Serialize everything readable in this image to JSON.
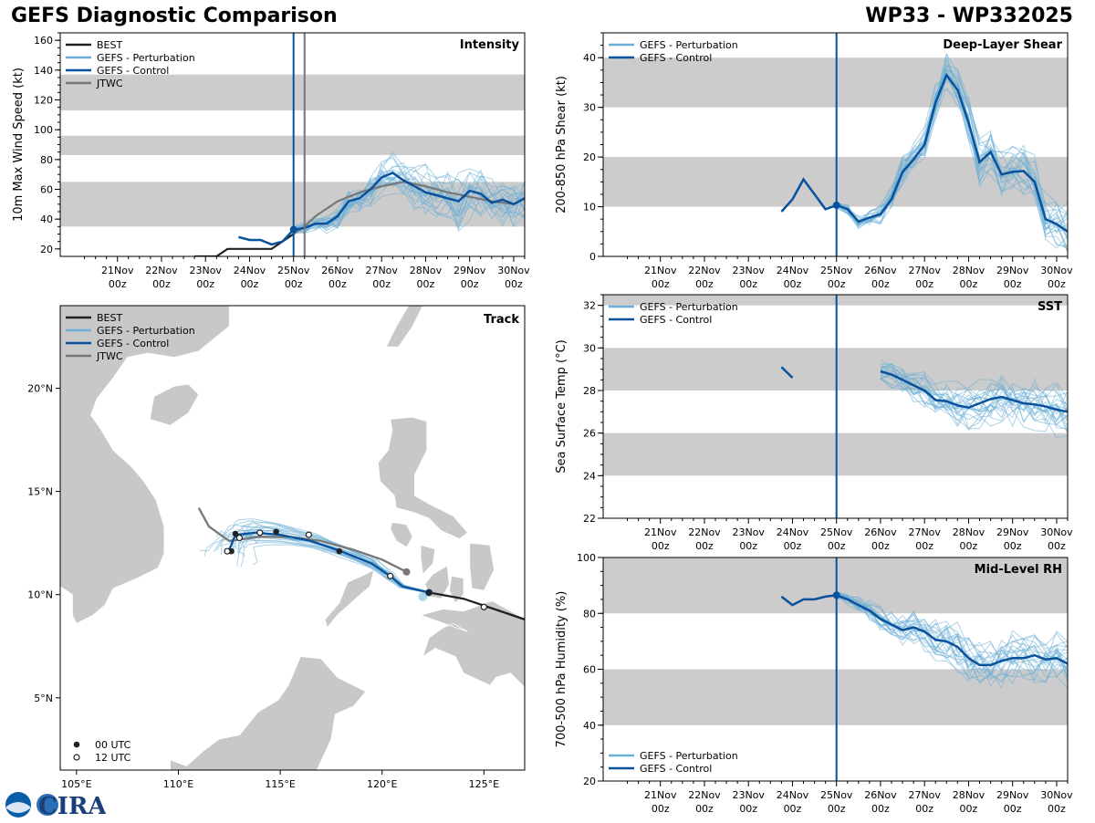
{
  "header": {
    "title_left": "GEFS Diagnostic Comparison",
    "title_right": "WP33 - WP332025"
  },
  "logo": {
    "label": "CIRA"
  },
  "colors": {
    "best": "#222222",
    "perturbation": "#6baed6",
    "control": "#08519c",
    "jtwc": "#777777",
    "band": "#cccccc",
    "land": "#c8c8c8",
    "marker": "#08519c"
  },
  "time_axis": {
    "labels_top": [
      "21Nov",
      "22Nov",
      "23Nov",
      "24Nov",
      "25Nov",
      "26Nov",
      "27Nov",
      "28Nov",
      "29Nov",
      "30Nov"
    ],
    "labels_bottom": [
      "00z",
      "00z",
      "00z",
      "00z",
      "00z",
      "00z",
      "00z",
      "00z",
      "00z",
      "00z"
    ],
    "range_days": [
      19.7,
      30.25
    ],
    "init_day": 25.0,
    "jtwc_day": 25.25
  },
  "chart_data": [
    {
      "id": "intensity",
      "type": "line",
      "title": "Intensity",
      "ylabel": "10m Max Wind Speed (kt)",
      "ylim": [
        15,
        165
      ],
      "yticks": [
        20,
        40,
        60,
        80,
        100,
        120,
        140,
        160
      ],
      "bands": [
        [
          35,
          65
        ],
        [
          83,
          96
        ],
        [
          113,
          137
        ]
      ],
      "legend": [
        "BEST",
        "GEFS - Perturbation",
        "GEFS - Control",
        "JTWC"
      ],
      "series": [
        {
          "name": "BEST",
          "x": [
            22.75,
            23.25,
            23.5,
            24.0,
            24.5,
            25.0
          ],
          "y": [
            15,
            15,
            20,
            20,
            20,
            30
          ]
        },
        {
          "name": "JTWC",
          "x": [
            25.0,
            25.25,
            25.5,
            26.0,
            26.5,
            27.0,
            27.5,
            28.0,
            28.5,
            29.0,
            29.5,
            30.0
          ],
          "y": [
            30,
            35,
            42,
            52,
            58,
            62,
            65,
            62,
            58,
            55,
            52,
            50
          ]
        },
        {
          "name": "GEFS - Control",
          "x": [
            23.75,
            24.0,
            24.25,
            24.5,
            24.75,
            25.0,
            25.25,
            25.5,
            25.75,
            26.0,
            26.25,
            26.5,
            26.75,
            27.0,
            27.25,
            27.5,
            27.75,
            28.0,
            28.25,
            28.5,
            28.75,
            29.0,
            29.25,
            29.5,
            29.75,
            30.0,
            30.25
          ],
          "y": [
            28,
            26,
            26,
            23,
            25,
            33,
            34,
            37,
            37,
            42,
            52,
            54,
            60,
            68,
            71,
            66,
            62,
            58,
            56,
            54,
            52,
            59,
            57,
            51,
            53,
            50,
            54
          ]
        }
      ],
      "marker": {
        "x": 25.0,
        "y": 33
      }
    },
    {
      "id": "shear",
      "type": "line",
      "title": "Deep-Layer Shear",
      "ylabel": "200-850 hPa Shear (kt)",
      "ylim": [
        0,
        45
      ],
      "yticks": [
        0,
        10,
        20,
        30,
        40
      ],
      "bands": [
        [
          10,
          20
        ],
        [
          30,
          40
        ]
      ],
      "legend": [
        "GEFS - Perturbation",
        "GEFS - Control"
      ],
      "series": [
        {
          "name": "GEFS - Control",
          "x": [
            23.75,
            24.0,
            24.25,
            24.5,
            24.75,
            25.0,
            25.25,
            25.5,
            25.75,
            26.0,
            26.25,
            26.5,
            26.75,
            27.0,
            27.25,
            27.5,
            27.75,
            28.0,
            28.25,
            28.5,
            28.75,
            29.0,
            29.25,
            29.5,
            29.75,
            30.0,
            30.25
          ],
          "y": [
            9,
            11.5,
            15.5,
            12.5,
            9.5,
            10.3,
            9.5,
            7.0,
            7.8,
            8.5,
            11.5,
            17,
            19.5,
            22.5,
            31,
            36.5,
            33.5,
            27,
            19,
            21,
            16.5,
            17,
            17.2,
            15,
            7.5,
            6.5,
            5
          ]
        }
      ],
      "marker": {
        "x": 25.0,
        "y": 10.3
      }
    },
    {
      "id": "sst",
      "type": "line",
      "title": "SST",
      "ylabel": "Sea Surface Temp (°C)",
      "ylim": [
        22,
        32.5
      ],
      "yticks": [
        22,
        24,
        26,
        28,
        30,
        32
      ],
      "bands": [
        [
          24,
          26
        ],
        [
          28,
          30
        ],
        [
          32,
          32.5
        ]
      ],
      "legend": [
        "GEFS - Perturbation",
        "GEFS - Control"
      ],
      "series": [
        {
          "name": "GEFS - Control",
          "x": [
            23.75,
            24.0
          ],
          "y": [
            29.1,
            28.6
          ]
        },
        {
          "name": "GEFS - Control",
          "x": [
            26.0,
            26.25,
            26.5,
            26.75,
            27.0,
            27.25,
            27.5,
            27.75,
            28.0,
            28.25,
            28.5,
            28.75,
            29.0,
            29.25,
            29.5,
            29.75,
            30.0,
            30.25
          ],
          "y": [
            28.9,
            28.75,
            28.5,
            28.25,
            28.0,
            27.55,
            27.5,
            27.3,
            27.2,
            27.4,
            27.6,
            27.7,
            27.55,
            27.4,
            27.35,
            27.25,
            27.1,
            27.0
          ]
        }
      ]
    },
    {
      "id": "rh",
      "type": "line",
      "title": "Mid-Level RH",
      "ylabel": "700-500 hPa Humidity (%)",
      "ylim": [
        20,
        100
      ],
      "yticks": [
        20,
        40,
        60,
        80,
        100
      ],
      "bands": [
        [
          40,
          60
        ],
        [
          80,
          100
        ]
      ],
      "legend": [
        "GEFS - Perturbation",
        "GEFS - Control"
      ],
      "series": [
        {
          "name": "GEFS - Control",
          "x": [
            23.75,
            24.0,
            24.25,
            24.5,
            24.75,
            25.0,
            25.25,
            25.5,
            25.75,
            26.0,
            26.25,
            26.5,
            26.75,
            27.0,
            27.25,
            27.5,
            27.75,
            28.0,
            28.25,
            28.5,
            28.75,
            29.0,
            29.25,
            29.5,
            29.75,
            30.0,
            30.25
          ],
          "y": [
            86,
            83,
            85,
            85,
            86,
            86.5,
            85,
            83,
            81,
            78,
            76,
            74,
            75,
            73.5,
            70.5,
            70,
            68,
            64,
            61.5,
            61.5,
            63,
            64,
            64,
            65,
            63.5,
            64,
            62
          ]
        }
      ],
      "marker": {
        "x": 25.0,
        "y": 86.5
      }
    },
    {
      "id": "track",
      "type": "scatter",
      "title": "Track",
      "xlim": [
        104.2,
        127.0
      ],
      "ylim": [
        1.5,
        24.0
      ],
      "xticks": [
        105,
        110,
        115,
        120,
        125
      ],
      "xtick_labels": [
        "105°E",
        "110°E",
        "115°E",
        "120°E",
        "125°E"
      ],
      "yticks": [
        5,
        10,
        15,
        20
      ],
      "ytick_labels": [
        "5°N",
        "10°N",
        "15°N",
        "20°N"
      ],
      "legend": [
        "BEST",
        "GEFS - Perturbation",
        "GEFS - Control",
        "JTWC"
      ],
      "marker_legend": [
        "00 UTC",
        "12 UTC"
      ],
      "series": [
        {
          "name": "BEST",
          "lon": [
            127.0,
            125.5,
            124.0,
            122.3
          ],
          "lat": [
            8.8,
            9.3,
            9.8,
            10.1
          ]
        },
        {
          "name": "JTWC",
          "lon": [
            121.2,
            120.0,
            118.5,
            117.0,
            115.5,
            114.0,
            112.5,
            111.5,
            111.0
          ],
          "lat": [
            11.1,
            11.7,
            12.2,
            12.6,
            12.8,
            12.8,
            12.6,
            13.3,
            14.2
          ]
        },
        {
          "name": "GEFS - Control",
          "lon": [
            122.3,
            121.0,
            120.4,
            119.5,
            118.0,
            116.5,
            115.0,
            113.8,
            112.9,
            112.7,
            112.6,
            112.5
          ],
          "lat": [
            10.1,
            10.4,
            10.9,
            11.5,
            12.1,
            12.6,
            12.9,
            13.0,
            12.9,
            12.7,
            12.4,
            12.2
          ]
        },
        {
          "name": "00 UTC",
          "lon": [
            122.3,
            117.9,
            114.8,
            112.8,
            112.6
          ],
          "lat": [
            10.1,
            12.1,
            13.05,
            12.95,
            12.1
          ]
        },
        {
          "name": "12 UTC",
          "lon": [
            125.0,
            120.4,
            116.4,
            114.0,
            113.0,
            112.4
          ],
          "lat": [
            9.4,
            10.9,
            12.9,
            13.0,
            12.75,
            12.1
          ]
        }
      ]
    }
  ]
}
